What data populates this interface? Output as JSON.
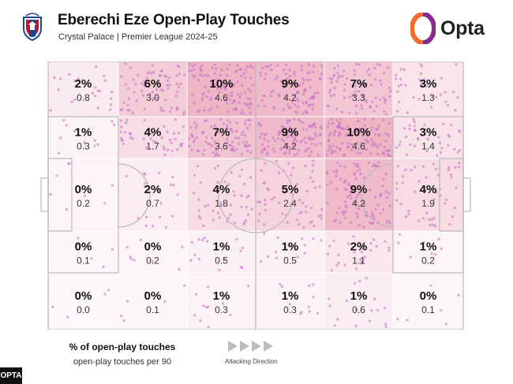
{
  "header": {
    "title": "Eberechi Eze Open-Play Touches",
    "subtitle": "Crystal Palace | Premier League 2024-25",
    "brand": "Opta"
  },
  "chart_data": {
    "type": "heatmap",
    "rows": [
      [
        {
          "pct": "2%",
          "per90": "0.8"
        },
        {
          "pct": "6%",
          "per90": "3.0"
        },
        {
          "pct": "10%",
          "per90": "4.6"
        },
        {
          "pct": "9%",
          "per90": "4.2"
        },
        {
          "pct": "7%",
          "per90": "3.3"
        },
        {
          "pct": "3%",
          "per90": "1.3"
        }
      ],
      [
        {
          "pct": "1%",
          "per90": "0.3"
        },
        {
          "pct": "4%",
          "per90": "1.7"
        },
        {
          "pct": "7%",
          "per90": "3.6"
        },
        {
          "pct": "9%",
          "per90": "4.2"
        },
        {
          "pct": "10%",
          "per90": "4.6"
        },
        {
          "pct": "3%",
          "per90": "1.4"
        }
      ],
      [
        {
          "pct": "0%",
          "per90": "0.2"
        },
        {
          "pct": "2%",
          "per90": "0.7"
        },
        {
          "pct": "4%",
          "per90": "1.8"
        },
        {
          "pct": "5%",
          "per90": "2.4"
        },
        {
          "pct": "9%",
          "per90": "4.2"
        },
        {
          "pct": "4%",
          "per90": "1.9"
        }
      ],
      [
        {
          "pct": "0%",
          "per90": "0.1"
        },
        {
          "pct": "0%",
          "per90": "0.2"
        },
        {
          "pct": "1%",
          "per90": "0.5"
        },
        {
          "pct": "1%",
          "per90": "0.5"
        },
        {
          "pct": "2%",
          "per90": "1.1"
        },
        {
          "pct": "1%",
          "per90": "0.2"
        }
      ],
      [
        {
          "pct": "0%",
          "per90": "0.0"
        },
        {
          "pct": "0%",
          "per90": "0.1"
        },
        {
          "pct": "1%",
          "per90": "0.3"
        },
        {
          "pct": "1%",
          "per90": "0.3"
        },
        {
          "pct": "1%",
          "per90": "0.6"
        },
        {
          "pct": "0%",
          "per90": "0.1"
        }
      ]
    ]
  },
  "legend": {
    "primary": "% of open-play touches",
    "secondary": "open-play touches per 90"
  },
  "direction_label": "Attacking Direction",
  "footer_badge": "OPTA",
  "colors": {
    "heat_max": "#e07a97",
    "dot": "#c86fc4",
    "pitch_line": "#b9b9b9",
    "opta_orange": "#f26b2c",
    "opta_purple": "#8a2a8c"
  }
}
